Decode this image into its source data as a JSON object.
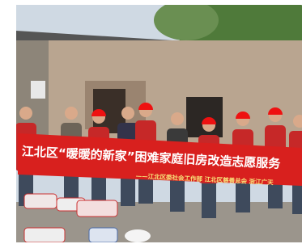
{
  "banner": {
    "title": "江北区“暖暖的新家”困难家庭旧房改造志愿服务",
    "subtitle": "——江北区委社会工作部  江北区慈善总会  浙江广天"
  }
}
